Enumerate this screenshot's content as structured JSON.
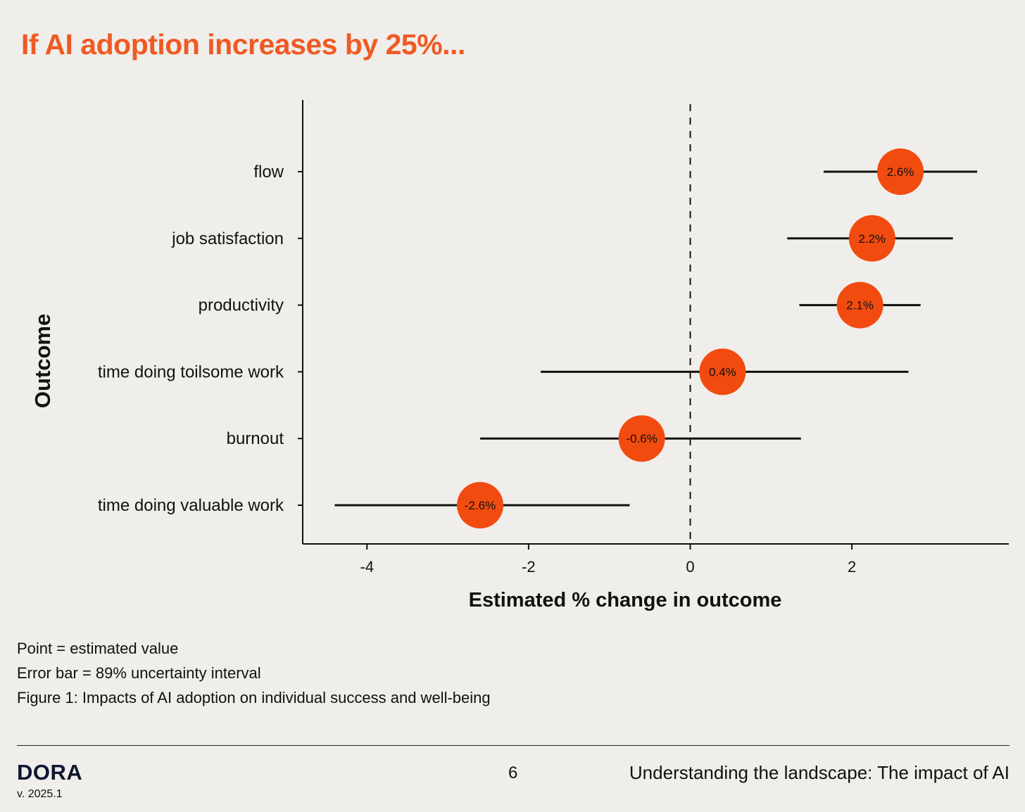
{
  "header": {
    "title": "If AI adoption increases by 25%..."
  },
  "colors": {
    "accent": "#ef5a24",
    "marker": "#f24b0f",
    "ink": "#111111",
    "background": "#f0eeea"
  },
  "chart_data": {
    "type": "scatter",
    "subtype": "dot-and-whisker",
    "title": "If AI adoption increases by 25%...",
    "xlabel": "Estimated % change in outcome",
    "ylabel": "Outcome",
    "xlim": [
      -4.8,
      3.9
    ],
    "xticks": [
      -4,
      -2,
      0,
      2
    ],
    "xtick_labels": [
      "-4",
      "-2",
      "0",
      "2"
    ],
    "reference_line": {
      "x": 0,
      "style": "dashed"
    },
    "grid": false,
    "categories": [
      "flow",
      "job satisfaction",
      "productivity",
      "time doing toilsome work",
      "burnout",
      "time doing valuable work"
    ],
    "points": [
      {
        "category": "flow",
        "value": 2.6,
        "low": 1.65,
        "high": 3.55,
        "label": "2.6%"
      },
      {
        "category": "job satisfaction",
        "value": 2.25,
        "low": 1.2,
        "high": 3.25,
        "label": "2.2%"
      },
      {
        "category": "productivity",
        "value": 2.1,
        "low": 1.35,
        "high": 2.85,
        "label": "2.1%"
      },
      {
        "category": "time doing toilsome work",
        "value": 0.4,
        "low": -1.85,
        "high": 2.7,
        "label": "0.4%"
      },
      {
        "category": "burnout",
        "value": -0.6,
        "low": -2.6,
        "high": 1.37,
        "label": "-0.6%"
      },
      {
        "category": "time doing valuable work",
        "value": -2.6,
        "low": -4.4,
        "high": -0.75,
        "label": "-2.6%"
      }
    ]
  },
  "notes": [
    "Point = estimated value",
    "Error bar = 89% uncertainty interval",
    "Figure 1: Impacts of AI adoption on individual success and well-being"
  ],
  "footer": {
    "brand": "DORA",
    "version": "v. 2025.1",
    "page_number": "6",
    "section_title": "Understanding the landscape: The impact of AI"
  }
}
